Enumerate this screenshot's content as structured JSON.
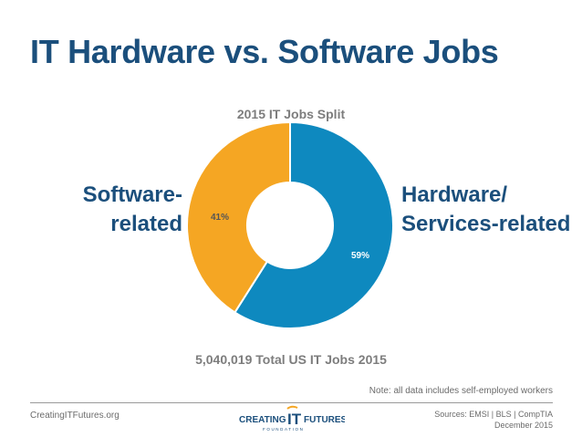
{
  "slide": {
    "title": "IT Hardware vs. Software Jobs",
    "left_label_line1": "Software-",
    "left_label_line2": "related",
    "right_label_line1": "Hardware/",
    "right_label_line2": "Services-related",
    "total": "5,040,019 Total US IT Jobs 2015",
    "note": "Note: all data includes self-employed workers",
    "footer_site": "CreatingITFutures.org",
    "sources": "Sources: EMSI | BLS | CompTIA",
    "date": "December 2015",
    "logo": {
      "word1": "CREATING",
      "word2": "IT",
      "word3": "FUTURES",
      "word4": "FOUNDATION"
    }
  },
  "chart_data": {
    "type": "donut",
    "title": "2015 IT Jobs Split",
    "slices": [
      {
        "name": "Hardware/Services-related",
        "value": 59,
        "label": "59%",
        "color": "#0e89bf"
      },
      {
        "name": "Software-related",
        "value": 41,
        "label": "41%",
        "color": "#f5a623"
      }
    ],
    "start": "top, clockwise"
  },
  "colors": {
    "title": "#1b4f7c",
    "subtle_text": "#7d7d7d",
    "logo_accent": "#f5a623"
  }
}
